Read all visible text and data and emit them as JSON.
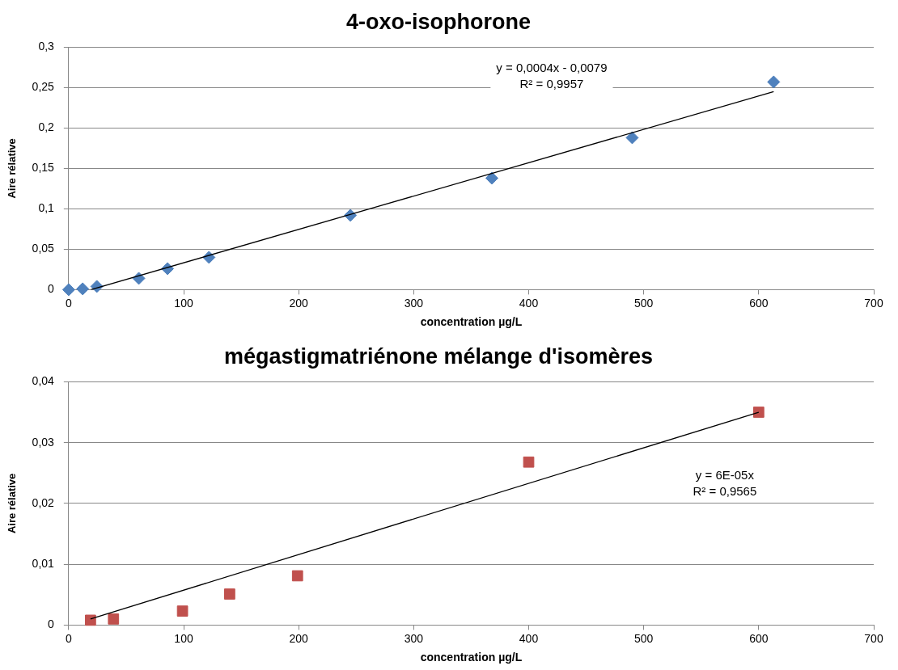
{
  "chart_data": [
    {
      "type": "scatter",
      "title": "4-oxo-isophorone",
      "xlabel": "concentration µg/L",
      "ylabel": "Aire rélative",
      "x": [
        0,
        12.2,
        24.5,
        61,
        86,
        122,
        245,
        368,
        490,
        613
      ],
      "series": [
        {
          "type": "scatter",
          "color": "#4f81bd",
          "marker": "diamond",
          "values": [
            0,
            0.001,
            0.004,
            0.014,
            0.026,
            0.04,
            0.092,
            0.138,
            0.188,
            0.257
          ]
        },
        {
          "type": "line",
          "color": "#000000",
          "marker": "none",
          "x": [
            19.4,
            613
          ],
          "values": [
            0,
            0.245
          ]
        }
      ],
      "xlim": [
        0,
        700
      ],
      "xticks": [
        0,
        100,
        200,
        300,
        400,
        500,
        600,
        700
      ],
      "ylim": [
        0,
        0.3
      ],
      "yticks": [
        0,
        {
          "value": 0.05,
          "label": "0,05"
        },
        {
          "value": 0.1,
          "label": "0,1"
        },
        {
          "value": 0.15,
          "label": "0,15"
        },
        {
          "value": 0.2,
          "label": "0,2"
        },
        {
          "value": 0.25,
          "label": "0,25"
        },
        {
          "value": 0.3,
          "label": "0,3"
        }
      ],
      "grid": "y",
      "legend": false,
      "annotations": [
        "y = 0,0004x - 0,0079\nR² = 0,9957"
      ]
    },
    {
      "type": "scatter",
      "title": "mégastigmatriénone mélange d'isomères",
      "xlabel": "concentration µg/L",
      "ylabel": "Aire rélative",
      "x": [
        19,
        39,
        99,
        140,
        199,
        400,
        600
      ],
      "series": [
        {
          "type": "scatter",
          "color": "#c0504d",
          "marker": "square",
          "values": [
            0.0008,
            0.001,
            0.0023,
            0.0051,
            0.0081,
            0.0268,
            0.035
          ]
        },
        {
          "type": "line",
          "color": "#000000",
          "marker": "none",
          "x": [
            19,
            600
          ],
          "values": [
            0.001,
            0.035
          ]
        }
      ],
      "xlim": [
        0,
        700
      ],
      "xticks": [
        0,
        100,
        200,
        300,
        400,
        500,
        600,
        700
      ],
      "ylim": [
        0,
        0.04
      ],
      "yticks": [
        0,
        {
          "value": 0.01,
          "label": "0,01"
        },
        {
          "value": 0.02,
          "label": "0,02"
        },
        {
          "value": 0.03,
          "label": "0,03"
        },
        {
          "value": 0.04,
          "label": "0,04"
        }
      ],
      "grid": "y",
      "legend": false,
      "annotations": [
        "y = 6E-05x\nR² = 0,9565"
      ]
    }
  ]
}
